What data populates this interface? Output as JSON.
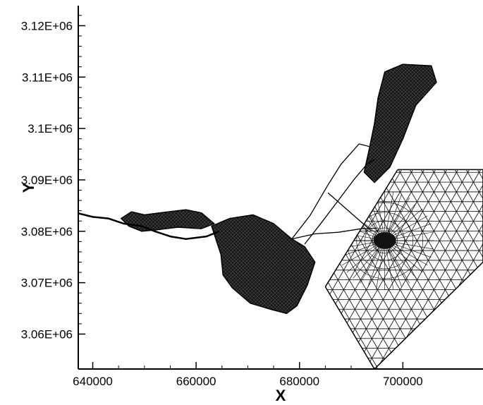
{
  "chart_data": {
    "type": "scatter",
    "title": "",
    "xlabel": "X",
    "ylabel": "Y",
    "xlim": [
      637200,
      715500
    ],
    "ylim": [
      3053200,
      3125000
    ],
    "xticks": [
      640000,
      660000,
      680000,
      700000
    ],
    "xtick_labels": [
      "640000",
      "660000",
      "680000",
      "700000"
    ],
    "yticks": [
      3060000,
      3070000,
      3080000,
      3090000,
      3100000,
      3110000,
      3120000
    ],
    "ytick_labels": [
      "3.06E+06",
      "3.07E+06",
      "3.08E+06",
      "3.09E+06",
      "3.1E+06",
      "3.11E+06",
      "3.12E+06"
    ],
    "grid": false,
    "legend": "none",
    "description_series": [
      {
        "name": "",
        "kind": "filled-mesh-region",
        "part": "main-basin",
        "polygon": [
          [
            663000,
            3081000
          ],
          [
            666500,
            3082500
          ],
          [
            671000,
            3083200
          ],
          [
            675000,
            3081500
          ],
          [
            678500,
            3078500
          ],
          [
            681000,
            3077000
          ],
          [
            683000,
            3074000
          ],
          [
            681500,
            3069500
          ],
          [
            679500,
            3065500
          ],
          [
            677500,
            3064000
          ],
          [
            674500,
            3064800
          ],
          [
            670500,
            3066000
          ],
          [
            667000,
            3069000
          ],
          [
            665200,
            3071500
          ],
          [
            664800,
            3075500
          ]
        ]
      },
      {
        "name": "",
        "kind": "filled-mesh-region",
        "part": "western-lake",
        "polygon": [
          [
            645500,
            3082500
          ],
          [
            647500,
            3083800
          ],
          [
            650000,
            3083200
          ],
          [
            654000,
            3083700
          ],
          [
            658000,
            3084200
          ],
          [
            661000,
            3083600
          ],
          [
            663500,
            3081500
          ],
          [
            661000,
            3080500
          ],
          [
            656500,
            3080800
          ],
          [
            652500,
            3080300
          ],
          [
            649500,
            3080000
          ],
          [
            647000,
            3081000
          ]
        ]
      },
      {
        "name": "",
        "kind": "filled-mesh-region",
        "part": "northern-bay",
        "polygon": [
          [
            692500,
            3091500
          ],
          [
            693500,
            3096000
          ],
          [
            694500,
            3101000
          ],
          [
            695200,
            3106000
          ],
          [
            696500,
            3111000
          ],
          [
            700000,
            3112500
          ],
          [
            705500,
            3112200
          ],
          [
            706500,
            3109000
          ],
          [
            702500,
            3104500
          ],
          [
            700000,
            3098000
          ],
          [
            697500,
            3092500
          ],
          [
            694500,
            3089500
          ]
        ]
      },
      {
        "name": "",
        "kind": "river-line",
        "polyline": [
          [
            637200,
            3083500
          ],
          [
            640000,
            3082800
          ],
          [
            643000,
            3082500
          ],
          [
            646000,
            3081500
          ],
          [
            649500,
            3081000
          ],
          [
            652000,
            3080000
          ],
          [
            655000,
            3079000
          ],
          [
            658000,
            3078500
          ],
          [
            662000,
            3079000
          ],
          [
            664500,
            3080000
          ]
        ]
      },
      {
        "name": "",
        "kind": "channel-outline",
        "polyline": [
          [
            678500,
            3078500
          ],
          [
            682000,
            3083000
          ],
          [
            685500,
            3089000
          ],
          [
            688000,
            3093000
          ],
          [
            691500,
            3097000
          ],
          [
            693500,
            3096500
          ]
        ]
      },
      {
        "name": "",
        "kind": "channel-outline",
        "polyline": [
          [
            681000,
            3077500
          ],
          [
            684500,
            3082000
          ],
          [
            687500,
            3086000
          ],
          [
            690500,
            3090000
          ],
          [
            693000,
            3093000
          ],
          [
            694500,
            3094000
          ]
        ]
      },
      {
        "name": "",
        "kind": "channel-outline",
        "polyline": [
          [
            678500,
            3078500
          ],
          [
            683000,
            3079500
          ],
          [
            687500,
            3079800
          ],
          [
            692000,
            3080500
          ],
          [
            695000,
            3080600
          ]
        ]
      },
      {
        "name": "",
        "kind": "channel-outline",
        "polyline": [
          [
            685500,
            3087500
          ],
          [
            690000,
            3083500
          ],
          [
            694000,
            3080000
          ]
        ]
      },
      {
        "name": "",
        "kind": "triangular-mesh",
        "part": "offshore-grid",
        "corners": [
          [
            685000,
            3069200
          ],
          [
            699000,
            3092000
          ],
          [
            715500,
            3092000
          ],
          [
            715500,
            3074000
          ],
          [
            694500,
            3053200
          ]
        ],
        "densified_center": [
          696500,
          3078200
        ]
      }
    ]
  }
}
